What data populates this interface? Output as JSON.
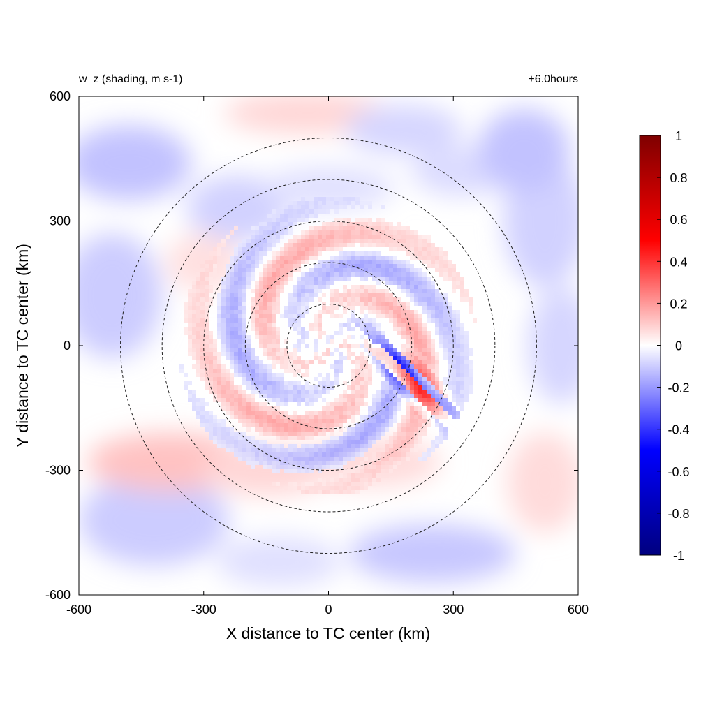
{
  "chart_data": {
    "type": "heatmap",
    "title_left": "w_z (shading, m s-1)",
    "title_right": "+6.0hours",
    "xlabel": "X distance to TC center (km)",
    "ylabel": "Y distance to TC center (km)",
    "xlim": [
      -600,
      600
    ],
    "ylim": [
      -600,
      600
    ],
    "xticks": [
      -600,
      -300,
      0,
      300,
      600
    ],
    "yticks": [
      -600,
      -300,
      0,
      300,
      600
    ],
    "xtick_labels": [
      "-600",
      "-300",
      "0",
      "300",
      "600"
    ],
    "ytick_labels": [
      "-600",
      "-300",
      "0",
      "300",
      "600"
    ],
    "grid": false,
    "colorbar": {
      "placement": "right",
      "range": [
        -1,
        1
      ],
      "ticks": [
        1,
        0.8,
        0.6,
        0.4,
        0.2,
        0,
        -0.2,
        -0.4,
        -0.6,
        -0.8,
        -1
      ],
      "tick_labels": [
        "1",
        "0.8",
        "0.6",
        "0.4",
        "0.2",
        "0",
        "-0.2",
        "-0.4",
        "-0.6",
        "-0.8",
        "-1"
      ],
      "colors": [
        "#00007f",
        "#0000ff",
        "#ffffff",
        "#ff0000",
        "#7f0000"
      ]
    },
    "range_rings_km": [
      100,
      200,
      300,
      400,
      500
    ],
    "ring_style": "dashed",
    "field_description_values": {
      "background_range": [
        -0.15,
        0.1
      ],
      "inner_core_max_negative": -0.6,
      "inner_core_max_positive": 0.4
    }
  }
}
